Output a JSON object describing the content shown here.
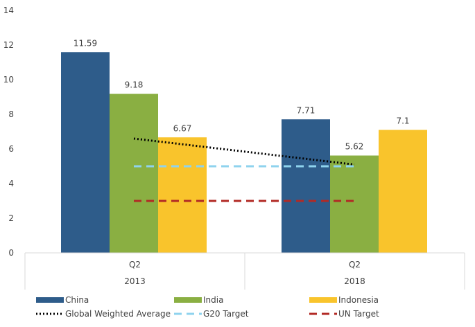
{
  "chart_data": {
    "type": "bar",
    "groups": [
      {
        "period": "Q2",
        "year": "2013"
      },
      {
        "period": "Q2",
        "year": "2018"
      }
    ],
    "series": [
      {
        "name": "China",
        "color": "#2e5c8a",
        "values": [
          11.59,
          7.71
        ],
        "labels": [
          "11.59",
          "7.71"
        ]
      },
      {
        "name": "India",
        "color": "#8aaf42",
        "values": [
          9.18,
          5.62
        ],
        "labels": [
          "9.18",
          "5.62"
        ]
      },
      {
        "name": "Indonesia",
        "color": "#f9c42c",
        "values": [
          6.67,
          7.1
        ],
        "labels": [
          "6.67",
          "7.1"
        ]
      }
    ],
    "lines": [
      {
        "name": "Global Weighted Average",
        "color": "#000000",
        "style": "dotted",
        "values": [
          6.6,
          5.1
        ]
      },
      {
        "name": "G20 Target",
        "color": "#8fd3ee",
        "style": "dashed",
        "values": [
          5,
          5
        ]
      },
      {
        "name": "UN Target",
        "color": "#b22a25",
        "style": "dashed",
        "values": [
          3,
          3
        ]
      }
    ],
    "ylim": [
      0,
      14
    ],
    "yticks": [
      "0",
      "2",
      "4",
      "6",
      "8",
      "10",
      "12",
      "14"
    ],
    "legend_position": "bottom",
    "grid": false
  }
}
